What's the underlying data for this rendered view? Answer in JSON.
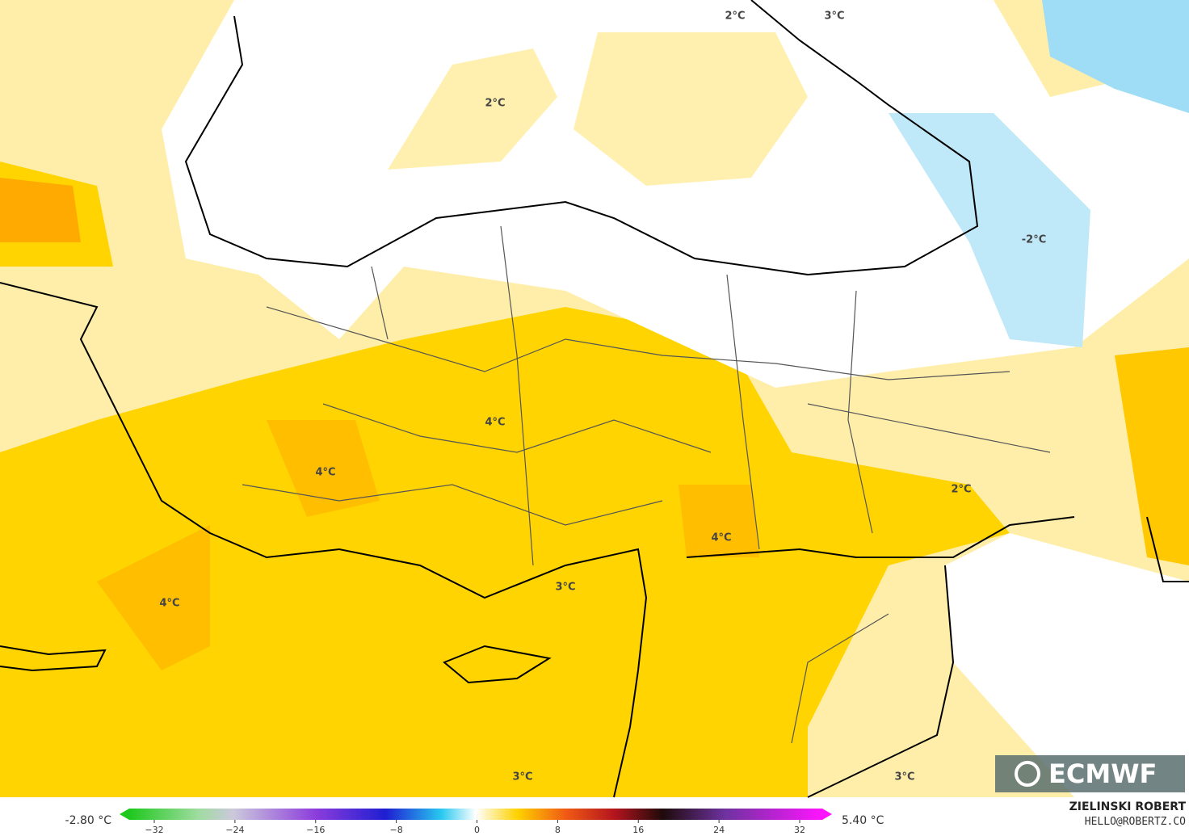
{
  "map": {
    "contour_labels": [
      {
        "text": "2°C"
      },
      {
        "text": "2°C"
      },
      {
        "text": "3°C"
      },
      {
        "text": "-2°C"
      },
      {
        "text": "4°C"
      },
      {
        "text": "4°C"
      },
      {
        "text": "4°C"
      },
      {
        "text": "4°C"
      },
      {
        "text": "3°C"
      },
      {
        "text": "2°C"
      },
      {
        "text": "3°C"
      },
      {
        "text": "3°C"
      }
    ],
    "logo": "ECMWF"
  },
  "colorbar": {
    "min_label": "-2.80 °C",
    "max_label": "5.40 °C",
    "ticks": [
      "−32",
      "−24",
      "−16",
      "−8",
      "0",
      "8",
      "16",
      "24",
      "32"
    ]
  },
  "credits": {
    "author": "ZIELINSKI ROBERT",
    "contact": "HELLO@ROBERTZ.CO"
  }
}
